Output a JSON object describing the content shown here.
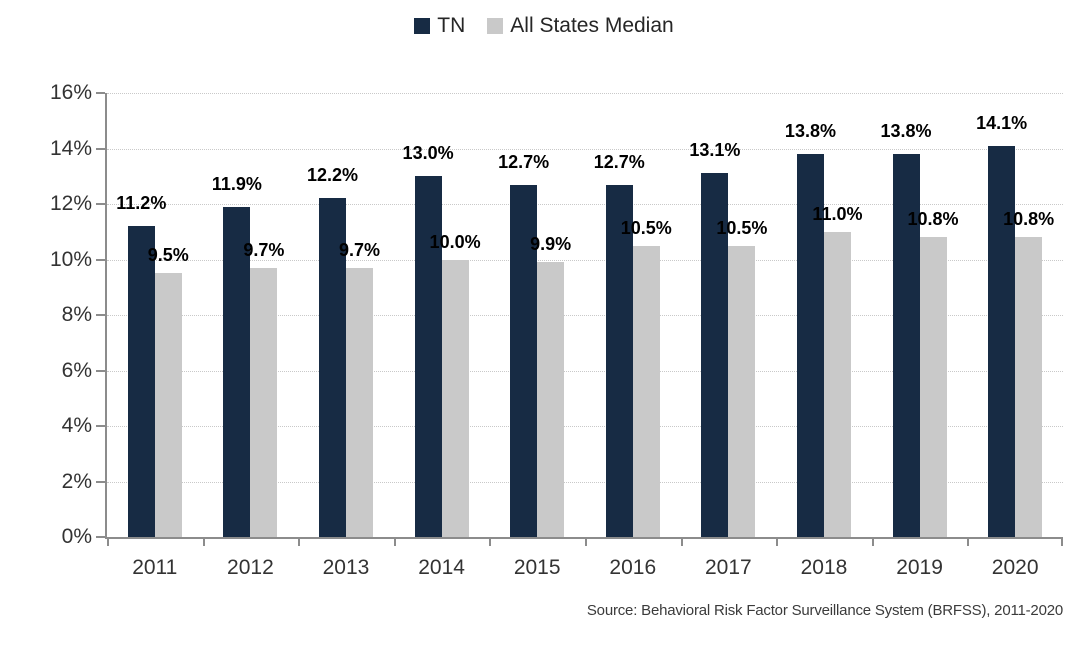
{
  "chart_data": {
    "type": "bar",
    "title": "",
    "categories": [
      "2011",
      "2012",
      "2013",
      "2014",
      "2015",
      "2016",
      "2017",
      "2018",
      "2019",
      "2020"
    ],
    "series": [
      {
        "name": "TN",
        "color": "#172B44",
        "values": [
          11.2,
          11.9,
          12.2,
          13.0,
          12.7,
          12.7,
          13.1,
          13.8,
          13.8,
          14.1
        ],
        "labels": [
          "11.2%",
          "11.9%",
          "12.2%",
          "13.0%",
          "12.7%",
          "12.7%",
          "13.1%",
          "13.8%",
          "13.8%",
          "14.1%"
        ]
      },
      {
        "name": "All States Median",
        "color": "#C9C9C9",
        "values": [
          9.5,
          9.7,
          9.7,
          10.0,
          9.9,
          10.5,
          10.5,
          11.0,
          10.8,
          10.8
        ],
        "labels": [
          "9.5%",
          "9.7%",
          "9.7%",
          "10.0%",
          "9.9%",
          "10.5%",
          "10.5%",
          "11.0%",
          "10.8%",
          "10.8%"
        ]
      }
    ],
    "y_axis": {
      "min": 0,
      "max": 16,
      "step": 2,
      "tick_labels": [
        "0%",
        "2%",
        "4%",
        "6%",
        "8%",
        "10%",
        "12%",
        "14%",
        "16%"
      ]
    },
    "legend_position": "top",
    "gridlines": true,
    "data_labels": "outside-end"
  },
  "source_note": "Source: Behavioral Risk Factor Surveillance System (BRFSS), 2011-2020",
  "colors": {
    "tn_bar": "#172B44",
    "median_bar": "#C9C9C9",
    "axis_line": "#8C8C8C",
    "gridline": "#C9C9C9",
    "data_label_text": "#000000",
    "axis_text": "#333333",
    "legend_text": "#262626",
    "background": "#FFFFFF"
  }
}
